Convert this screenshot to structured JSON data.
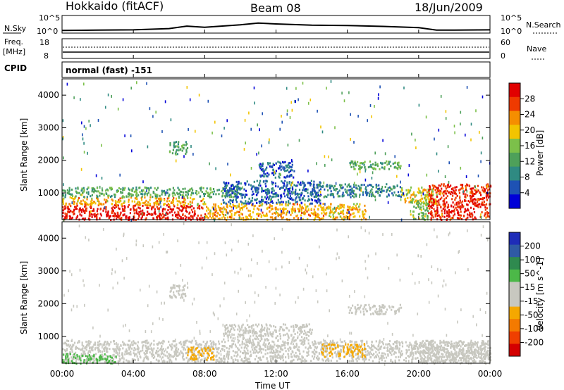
{
  "header": {
    "station": "Hokkaido (fitACF)",
    "beam": "Beam 08",
    "date": "18/Jun/2009"
  },
  "panels": {
    "nsky_label": "N.Sky",
    "nsky_ticks": [
      "10^5",
      "10^0"
    ],
    "nsearch_label": "N.Search",
    "nsearch_ticks": [
      "10^5",
      "10^0"
    ],
    "freq_label_1": "Freq.",
    "freq_label_2": "[MHz]",
    "freq_ticks": [
      "18",
      "8"
    ],
    "nave_label": "Nave",
    "nave_ticks": [
      "60",
      "0"
    ],
    "cpid_label": "CPID",
    "cpid_text": "normal (fast) -151"
  },
  "axis": {
    "xlabel": "Time UT",
    "xticks": [
      "00:00",
      "04:00",
      "08:00",
      "12:00",
      "16:00",
      "20:00",
      "00:00"
    ],
    "ylabel": "Slant Range [km]",
    "yticks": [
      "4000",
      "3000",
      "2000",
      "1000"
    ]
  },
  "colors": {
    "power": [
      "#0000d8",
      "#1e52b4",
      "#2f8a82",
      "#4ea05a",
      "#7cc04a",
      "#f2c400",
      "#f58e00",
      "#ef3a00",
      "#e10000"
    ],
    "velocity": [
      "#d40000",
      "#ef3f00",
      "#f47a00",
      "#f5a800",
      "#c8c8c0",
      "#c8c8c0",
      "#4cb848",
      "#2f8a4f",
      "#2f5aa5",
      "#1e2cb8"
    ]
  },
  "chart_data": [
    {
      "type": "line",
      "title": "",
      "series": [
        {
          "name": "N.Sky",
          "description_ranges": "log scale 10^0 to 10^5"
        },
        {
          "name": "N.Search"
        }
      ],
      "x": [
        0,
        2,
        4,
        6,
        7,
        8,
        10,
        11,
        12,
        14,
        16,
        18,
        20,
        21,
        22,
        24
      ],
      "nsky_log": [
        0.4,
        0.5,
        0.6,
        1.0,
        1.8,
        1.4,
        2.2,
        2.8,
        2.5,
        2.1,
        2.0,
        1.7,
        1.3,
        0.5,
        0.5,
        0.6
      ],
      "ylim": [
        0,
        5
      ]
    },
    {
      "type": "line",
      "title": "",
      "series": [
        {
          "name": "Freq."
        },
        {
          "name": "Nave"
        }
      ],
      "x": [
        0,
        24
      ],
      "freq_mhz": [
        10.5,
        10.5
      ],
      "ylim_left": [
        8,
        18
      ],
      "ylim_right": [
        0,
        60
      ]
    },
    {
      "type": "heatmap",
      "title": "",
      "colorbar_label": "Power [dB]",
      "colorbar_ticks": [
        "28",
        "24",
        "20",
        "16",
        "12",
        "8",
        "4"
      ],
      "colorbar_range": [
        0,
        30
      ],
      "xlim_hours": [
        0,
        24
      ],
      "ylim_km": [
        180,
        4500
      ],
      "xlabel": "",
      "ylabel": "Slant Range [km]",
      "regions": [
        {
          "t0": 0,
          "t1": 8,
          "r0": 200,
          "r1": 650,
          "level": 28
        },
        {
          "t0": 0,
          "t1": 8,
          "r0": 650,
          "r1": 900,
          "level": 20
        },
        {
          "t0": 0,
          "t1": 10,
          "r0": 900,
          "r1": 1200,
          "level": 12
        },
        {
          "t0": 6,
          "t1": 7,
          "r0": 2200,
          "r1": 2600,
          "level": 12
        },
        {
          "t0": 8,
          "t1": 17,
          "r0": 200,
          "r1": 700,
          "level": 20
        },
        {
          "t0": 9,
          "t1": 14.5,
          "r0": 700,
          "r1": 1400,
          "level": 6
        },
        {
          "t0": 11,
          "t1": 13,
          "r0": 1500,
          "r1": 2000,
          "level": 6
        },
        {
          "t0": 14,
          "t1": 19,
          "r0": 900,
          "r1": 1300,
          "level": 8
        },
        {
          "t0": 16,
          "t1": 19,
          "r0": 1750,
          "r1": 2000,
          "level": 12
        },
        {
          "t0": 19,
          "t1": 21,
          "r0": 700,
          "r1": 1200,
          "level": 18
        },
        {
          "t0": 20.5,
          "t1": 24,
          "r0": 200,
          "r1": 1300,
          "level": 27
        },
        {
          "t0": 19.5,
          "t1": 20.5,
          "r0": 200,
          "r1": 800,
          "level": 14
        }
      ]
    },
    {
      "type": "heatmap",
      "title": "",
      "colorbar_label": "Velocity [m s^-1]",
      "colorbar_ticks": [
        "200",
        "100",
        "50",
        "15",
        "-15",
        "-50",
        "-100",
        "-200"
      ],
      "colorbar_range": [
        -250,
        250
      ],
      "xlim_hours": [
        0,
        24
      ],
      "ylim_km": [
        180,
        4500
      ],
      "xlabel": "Time UT",
      "ylabel": "Slant Range [km]",
      "regions": [
        {
          "t0": 0,
          "t1": 24,
          "r0": 250,
          "r1": 900,
          "level": 0
        },
        {
          "t0": 0,
          "t1": 3,
          "r0": 200,
          "r1": 500,
          "level": 60
        },
        {
          "t0": 7,
          "t1": 8.5,
          "r0": 300,
          "r1": 700,
          "level": -60
        },
        {
          "t0": 14.5,
          "t1": 17,
          "r0": 400,
          "r1": 800,
          "level": -70
        },
        {
          "t0": 6,
          "t1": 7,
          "r0": 2200,
          "r1": 2600,
          "level": 0
        },
        {
          "t0": 9,
          "t1": 14,
          "r0": 900,
          "r1": 1400,
          "level": 0
        },
        {
          "t0": 16,
          "t1": 19,
          "r0": 1700,
          "r1": 2000,
          "level": 0
        },
        {
          "t0": 20,
          "t1": 24,
          "r0": 200,
          "r1": 900,
          "level": 0
        }
      ]
    }
  ]
}
